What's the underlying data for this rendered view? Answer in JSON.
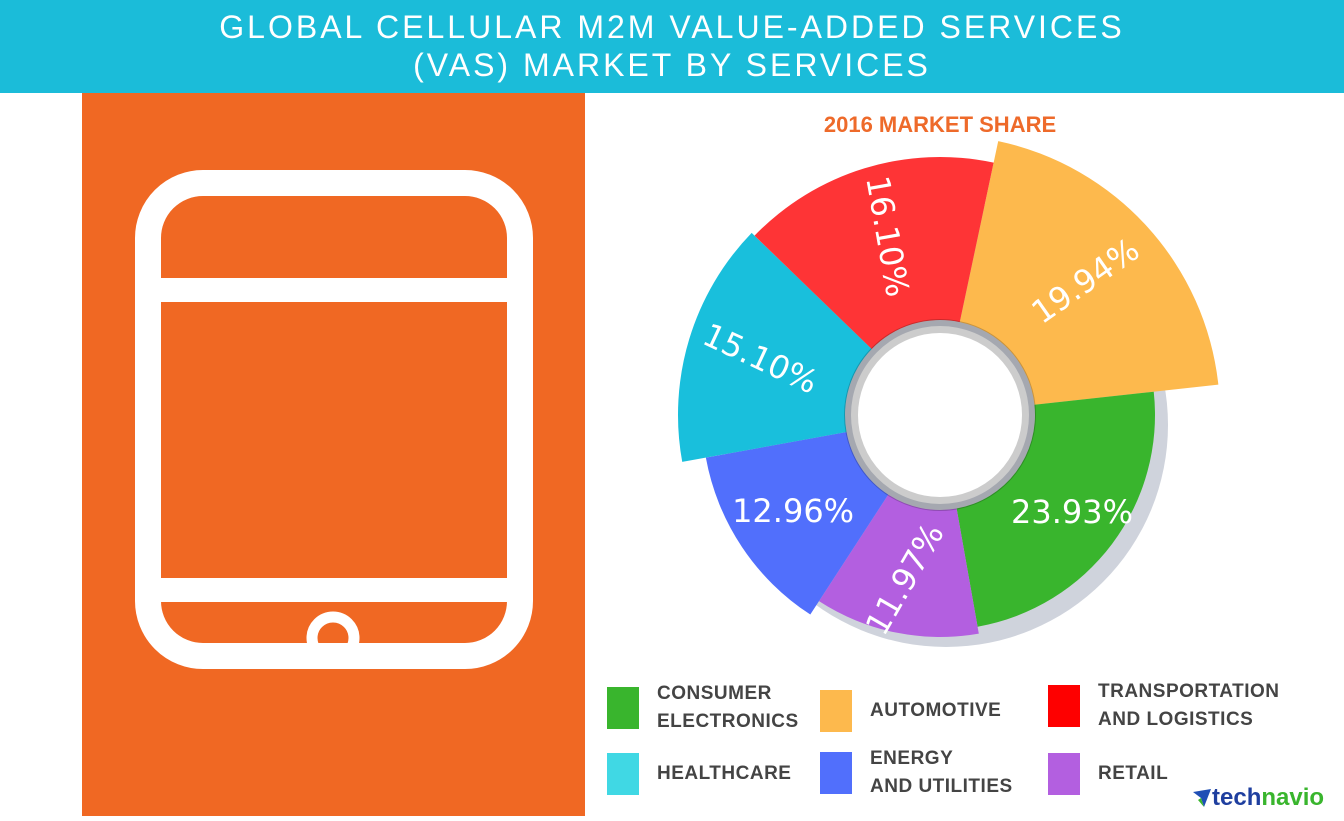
{
  "header": {
    "line1": "GLOBAL CELLULAR M2M VALUE-ADDED SERVICES",
    "line2": "(VAS) MARKET BY SERVICES"
  },
  "logo": {
    "part1": "tech",
    "part2": "navio"
  },
  "chart_data": {
    "type": "pie",
    "title": "2016 MARKET SHARE",
    "categories": [
      "Automotive",
      "Consumer Electronics",
      "Retail",
      "Energy and Utilities",
      "Healthcare",
      "Transportation and Logistics"
    ],
    "values": [
      19.94,
      23.93,
      11.97,
      12.96,
      15.1,
      16.1
    ],
    "labels": [
      "19.94%",
      "23.93%",
      "11.97%",
      "12.96%",
      "15.10%",
      "16.10%"
    ],
    "colors": [
      "#fdb94d",
      "#39b52d",
      "#b35fe0",
      "#516ffc",
      "#19bfdc",
      "#fe3436"
    ],
    "legend": [
      {
        "label1": "CONSUMER",
        "label2": "ELECTRONICS",
        "color": "#39b52d"
      },
      {
        "label1": "AUTOMOTIVE",
        "label2": "",
        "color": "#fdb94d"
      },
      {
        "label1": "TRANSPORTATION",
        "label2": "AND LOGISTICS",
        "color": "#fe0000"
      },
      {
        "label1": "HEALTHCARE",
        "label2": "",
        "color": "#40d8e4"
      },
      {
        "label1": "ENERGY",
        "label2": "AND UTILITIES",
        "color": "#516ffc"
      },
      {
        "label1": "RETAIL",
        "label2": "",
        "color": "#b35fe0"
      }
    ]
  }
}
